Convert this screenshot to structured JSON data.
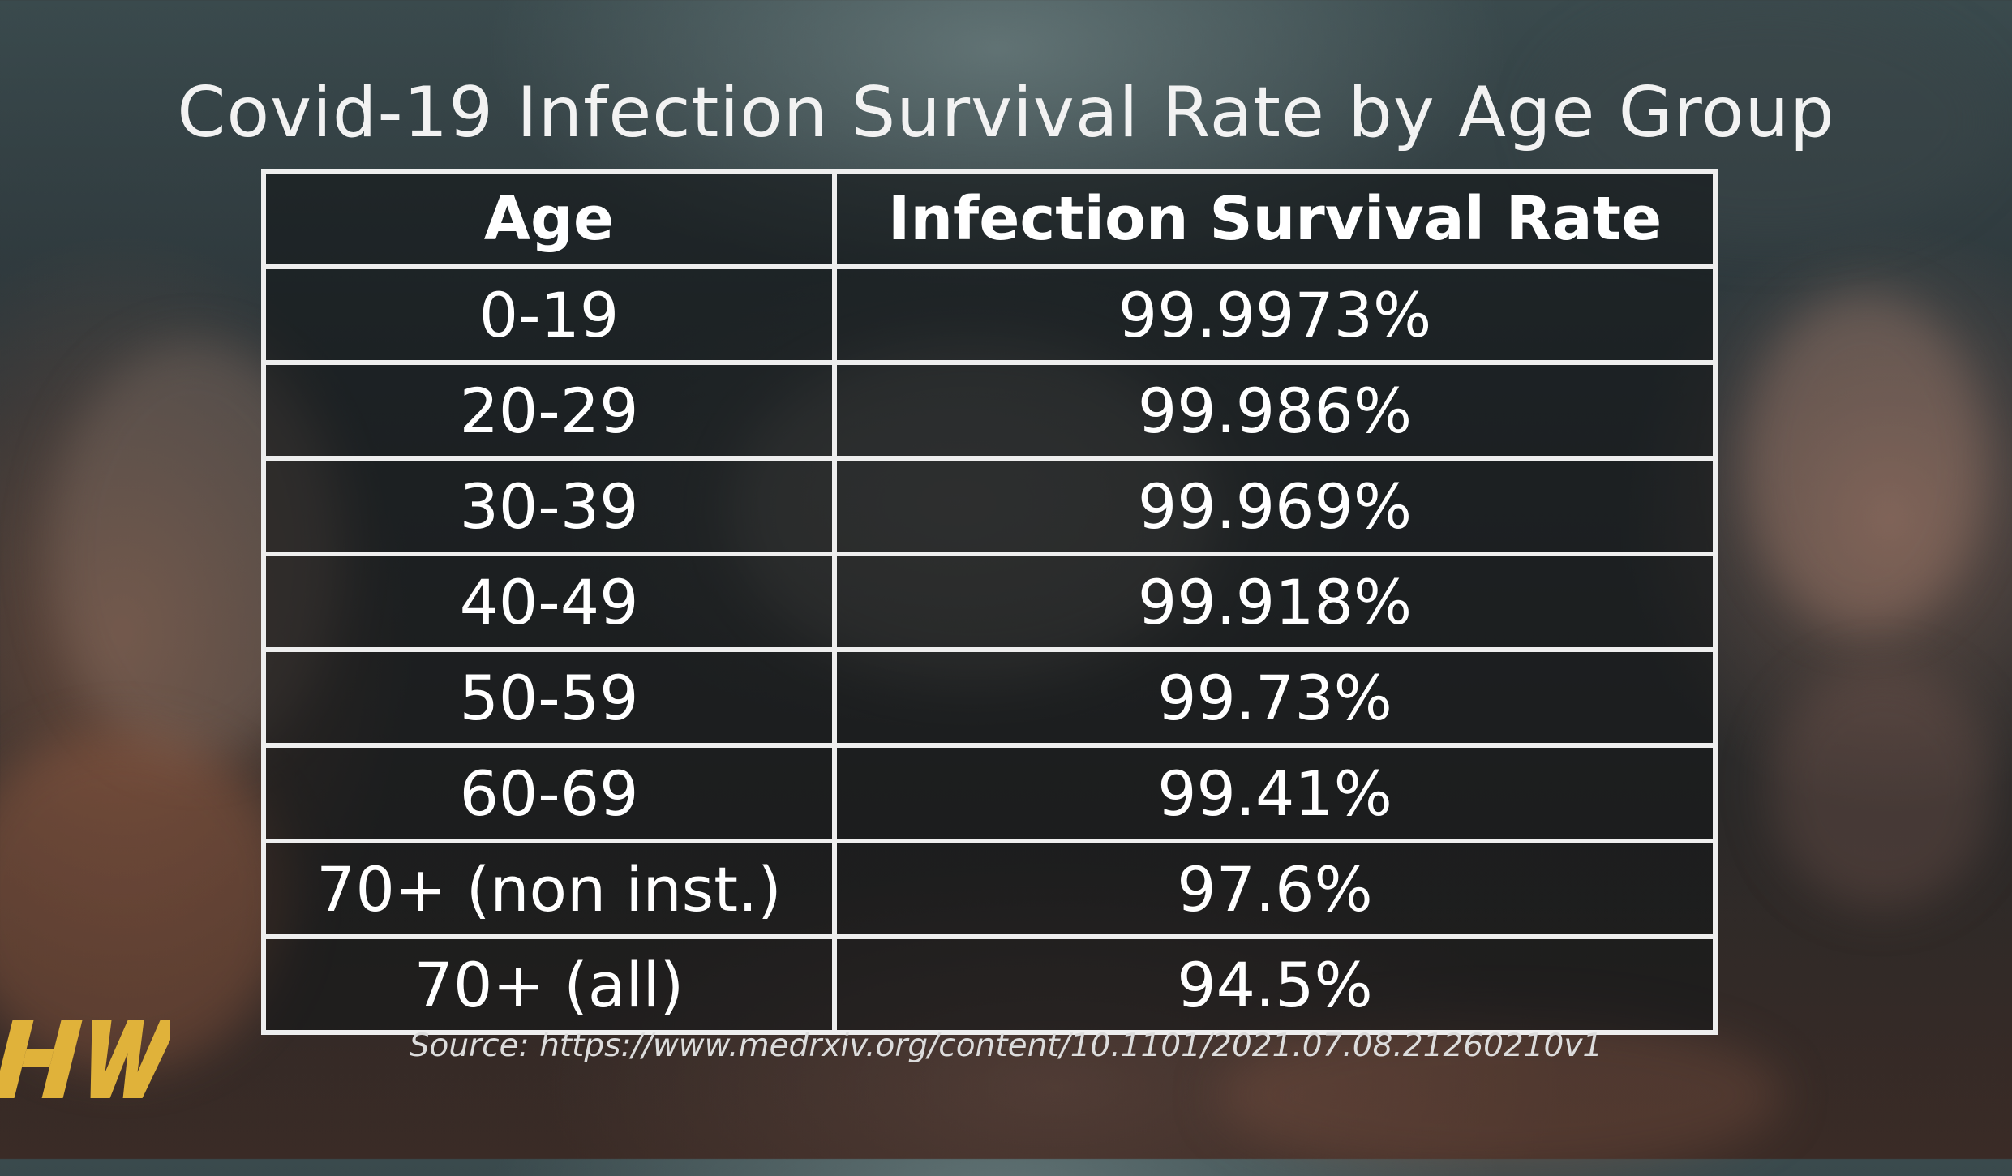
{
  "title": "Covid-19 Infection Survival Rate by Age Group",
  "source": "Source: https://www.medrxiv.org/content/10.1101/2021.07.08.21260210v1",
  "logo_text": "HW",
  "colors": {
    "text": "#ffffff",
    "grid": "#eeeeee",
    "logo": "#e0b23a"
  },
  "chart_data": {
    "type": "table",
    "title": "Covid-19 Infection Survival Rate by Age Group",
    "columns": [
      "Age",
      "Infection Survival Rate"
    ],
    "rows": [
      [
        "0-19",
        "99.9973%"
      ],
      [
        "20-29",
        "99.986%"
      ],
      [
        "30-39",
        "99.969%"
      ],
      [
        "40-49",
        "99.918%"
      ],
      [
        "50-59",
        "99.73%"
      ],
      [
        "60-69",
        "99.41%"
      ],
      [
        "70+ (non inst.)",
        "97.6%"
      ],
      [
        "70+ (all)",
        "94.5%"
      ]
    ]
  }
}
